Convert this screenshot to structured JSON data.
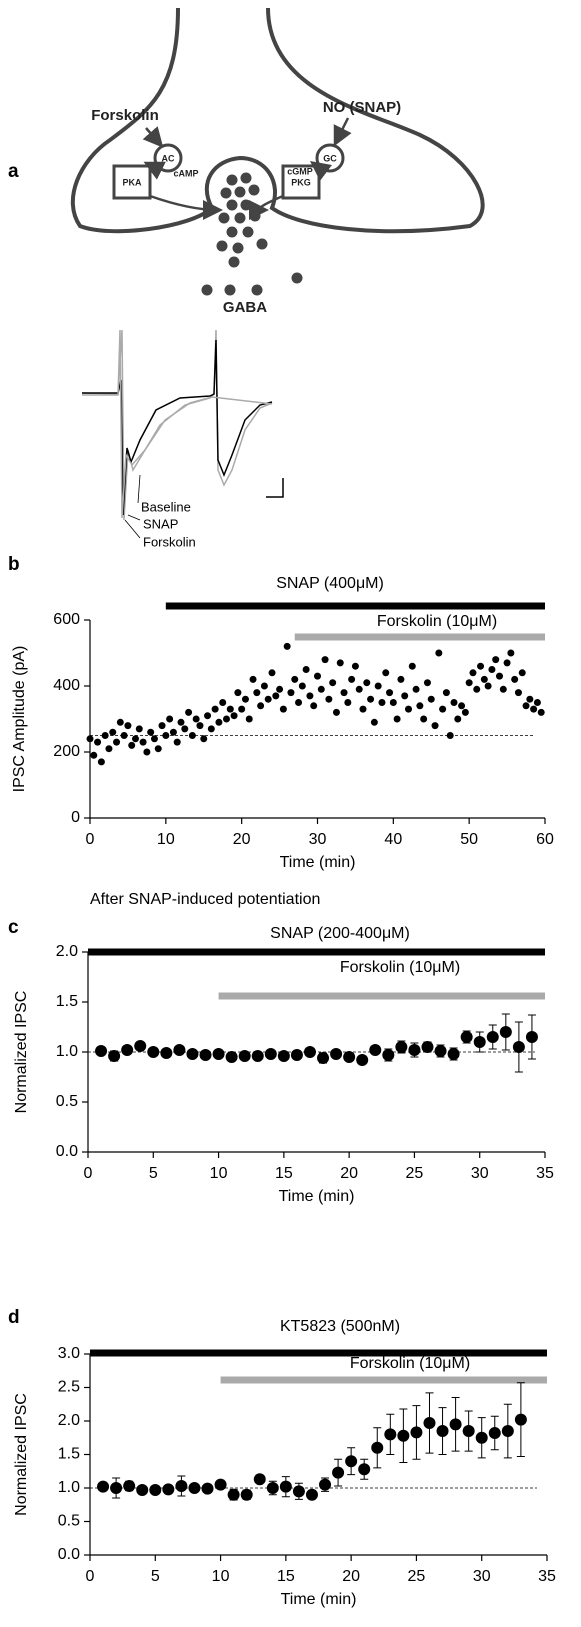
{
  "panel_labels": [
    "a",
    "b",
    "c",
    "d"
  ],
  "diagram": {
    "inputs": [
      "Forskolin",
      "NO (SNAP)"
    ],
    "enzymes": [
      "AC",
      "GC"
    ],
    "messengers": [
      "cAMP",
      "cGMP"
    ],
    "kinases": [
      "PKA",
      "PKG"
    ],
    "transmitter": "GABA"
  },
  "traces": {
    "labels": [
      "Baseline",
      "SNAP",
      "Forskolin"
    ]
  },
  "chart_data": [
    {
      "type": "scatter",
      "color": "#000000",
      "xlabel": "Time (min)",
      "ylabel": "IPSC Amplitude (pA)",
      "xlim": [
        0,
        60
      ],
      "ylim": [
        0,
        600
      ],
      "xticks": [
        0,
        10,
        20,
        30,
        40,
        50,
        60
      ],
      "yticks": [
        0,
        200,
        400,
        600
      ],
      "reference_line": 250,
      "treatments": [
        {
          "label": "SNAP (400μM)",
          "start": 10,
          "end": 60,
          "color": "#000000"
        },
        {
          "label": "Forskolin (10μM)",
          "start": 27,
          "end": 60,
          "color": "#aaaaaa"
        }
      ],
      "x": [
        0,
        0.5,
        1,
        1.5,
        2,
        2.5,
        3,
        3.5,
        4,
        4.5,
        5,
        5.5,
        6,
        6.5,
        7,
        7.5,
        8,
        8.5,
        9,
        9.5,
        10,
        10.5,
        11,
        11.5,
        12,
        12.5,
        13,
        13.5,
        14,
        14.5,
        15,
        15.5,
        16,
        16.5,
        17,
        17.5,
        18,
        18.5,
        19,
        19.5,
        20,
        20.5,
        21,
        21.5,
        22,
        22.5,
        23,
        23.5,
        24,
        24.5,
        25,
        25.5,
        26,
        26.5,
        27,
        27.5,
        28,
        28.5,
        29,
        29.5,
        30,
        30.5,
        31,
        31.5,
        32,
        32.5,
        33,
        33.5,
        34,
        34.5,
        35,
        35.5,
        36,
        36.5,
        37,
        37.5,
        38,
        38.5,
        39,
        39.5,
        40,
        40.5,
        41,
        41.5,
        42,
        42.5,
        43,
        43.5,
        44,
        44.5,
        45,
        45.5,
        46,
        46.5,
        47,
        47.5,
        48,
        48.5,
        49,
        49.5,
        50,
        50.5,
        51,
        51.5,
        52,
        52.5,
        53,
        53.5,
        54,
        54.5,
        55,
        55.5,
        56,
        56.5,
        57,
        57.5,
        58,
        58.5,
        59,
        59.5
      ],
      "values": [
        240,
        190,
        230,
        170,
        250,
        210,
        260,
        230,
        290,
        250,
        280,
        220,
        240,
        270,
        230,
        200,
        260,
        240,
        210,
        280,
        250,
        300,
        260,
        230,
        290,
        270,
        320,
        250,
        300,
        280,
        240,
        310,
        270,
        330,
        290,
        350,
        300,
        330,
        310,
        380,
        330,
        360,
        300,
        420,
        380,
        340,
        400,
        360,
        440,
        370,
        390,
        330,
        520,
        380,
        420,
        350,
        400,
        450,
        370,
        340,
        430,
        390,
        480,
        360,
        410,
        320,
        470,
        380,
        350,
        420,
        460,
        390,
        330,
        410,
        360,
        290,
        400,
        350,
        440,
        380,
        350,
        300,
        420,
        370,
        330,
        460,
        390,
        340,
        300,
        410,
        360,
        280,
        500,
        330,
        380,
        250,
        350,
        300,
        340,
        320,
        410,
        440,
        390,
        460,
        420,
        400,
        450,
        480,
        430,
        390,
        470,
        500,
        420,
        380,
        440,
        340,
        360,
        330,
        350,
        320
      ]
    },
    {
      "type": "errorbar",
      "title": "After SNAP-induced potentiation",
      "color": "#000000",
      "xlabel": "Time (min)",
      "ylabel": "Normalized IPSC",
      "xlim": [
        0,
        35
      ],
      "ylim": [
        0,
        2
      ],
      "xticks": [
        0,
        5,
        10,
        15,
        20,
        25,
        30,
        35
      ],
      "yticks": [
        {
          "value": 0,
          "label": "0.0"
        },
        0.5,
        {
          "value": 1,
          "label": "1.0"
        },
        1.5,
        {
          "value": 2,
          "label": "2.0"
        }
      ],
      "reference_line": 1,
      "treatments": [
        {
          "label": "SNAP (200-400μM)",
          "start": 0,
          "end": 35,
          "color": "#000000"
        },
        {
          "label": "Forskolin (10μM)",
          "start": 10,
          "end": 35,
          "color": "#aaaaaa"
        }
      ],
      "x": [
        1,
        2,
        3,
        4,
        5,
        6,
        7,
        8,
        9,
        10,
        11,
        12,
        13,
        14,
        15,
        16,
        17,
        18,
        19,
        20,
        21,
        22,
        23,
        24,
        25,
        26,
        27,
        28,
        29,
        30,
        31,
        32,
        33,
        34
      ],
      "values": [
        1.01,
        0.96,
        1.02,
        1.06,
        1.0,
        0.99,
        1.02,
        0.98,
        0.97,
        0.98,
        0.95,
        0.96,
        0.96,
        0.98,
        0.96,
        0.97,
        1.0,
        0.94,
        0.98,
        0.95,
        0.92,
        1.02,
        0.97,
        1.05,
        1.02,
        1.05,
        1.01,
        0.98,
        1.15,
        1.1,
        1.15,
        1.2,
        1.05,
        1.15
      ],
      "errors": [
        0.03,
        0.05,
        0.03,
        0.03,
        0.03,
        0.03,
        0.03,
        0.02,
        0.03,
        0.03,
        0.03,
        0.03,
        0.03,
        0.03,
        0.03,
        0.03,
        0.03,
        0.05,
        0.03,
        0.03,
        0.04,
        0.03,
        0.06,
        0.06,
        0.07,
        0.05,
        0.06,
        0.06,
        0.06,
        0.1,
        0.12,
        0.18,
        0.25,
        0.22
      ]
    },
    {
      "type": "errorbar",
      "color": "#000000",
      "xlabel": "Time (min)",
      "ylabel": "Normalized IPSC",
      "xlim": [
        0,
        35
      ],
      "ylim": [
        0,
        3
      ],
      "xticks": [
        0,
        5,
        10,
        15,
        20,
        25,
        30,
        35
      ],
      "yticks": [
        {
          "value": 0,
          "label": "0.0"
        },
        0.5,
        {
          "value": 1,
          "label": "1.0"
        },
        1.5,
        {
          "value": 2,
          "label": "2.0"
        },
        2.5,
        {
          "value": 3,
          "label": "3.0"
        }
      ],
      "reference_line": 1,
      "treatments": [
        {
          "label": "KT5823 (500nM)",
          "start": 0,
          "end": 35,
          "color": "#000000"
        },
        {
          "label": "Forskolin (10μM)",
          "start": 10,
          "end": 35,
          "color": "#aaaaaa"
        }
      ],
      "x": [
        1,
        2,
        3,
        4,
        5,
        6,
        7,
        8,
        9,
        10,
        11,
        12,
        13,
        14,
        15,
        16,
        17,
        18,
        19,
        20,
        21,
        22,
        23,
        24,
        25,
        26,
        27,
        28,
        29,
        30,
        31,
        32,
        33
      ],
      "values": [
        1.02,
        1.0,
        1.03,
        0.97,
        0.97,
        0.98,
        1.03,
        1.0,
        0.99,
        1.05,
        0.9,
        0.9,
        1.13,
        1.0,
        1.02,
        0.95,
        0.9,
        1.05,
        1.23,
        1.4,
        1.28,
        1.6,
        1.8,
        1.78,
        1.83,
        1.97,
        1.85,
        1.95,
        1.85,
        1.75,
        1.82,
        1.85,
        2.02
      ],
      "errors": [
        0.05,
        0.15,
        0.07,
        0.05,
        0.05,
        0.05,
        0.15,
        0.05,
        0.05,
        0.05,
        0.08,
        0.07,
        0.04,
        0.1,
        0.15,
        0.12,
        0.06,
        0.1,
        0.2,
        0.2,
        0.15,
        0.3,
        0.3,
        0.4,
        0.4,
        0.45,
        0.35,
        0.4,
        0.3,
        0.3,
        0.25,
        0.4,
        0.55
      ]
    }
  ]
}
